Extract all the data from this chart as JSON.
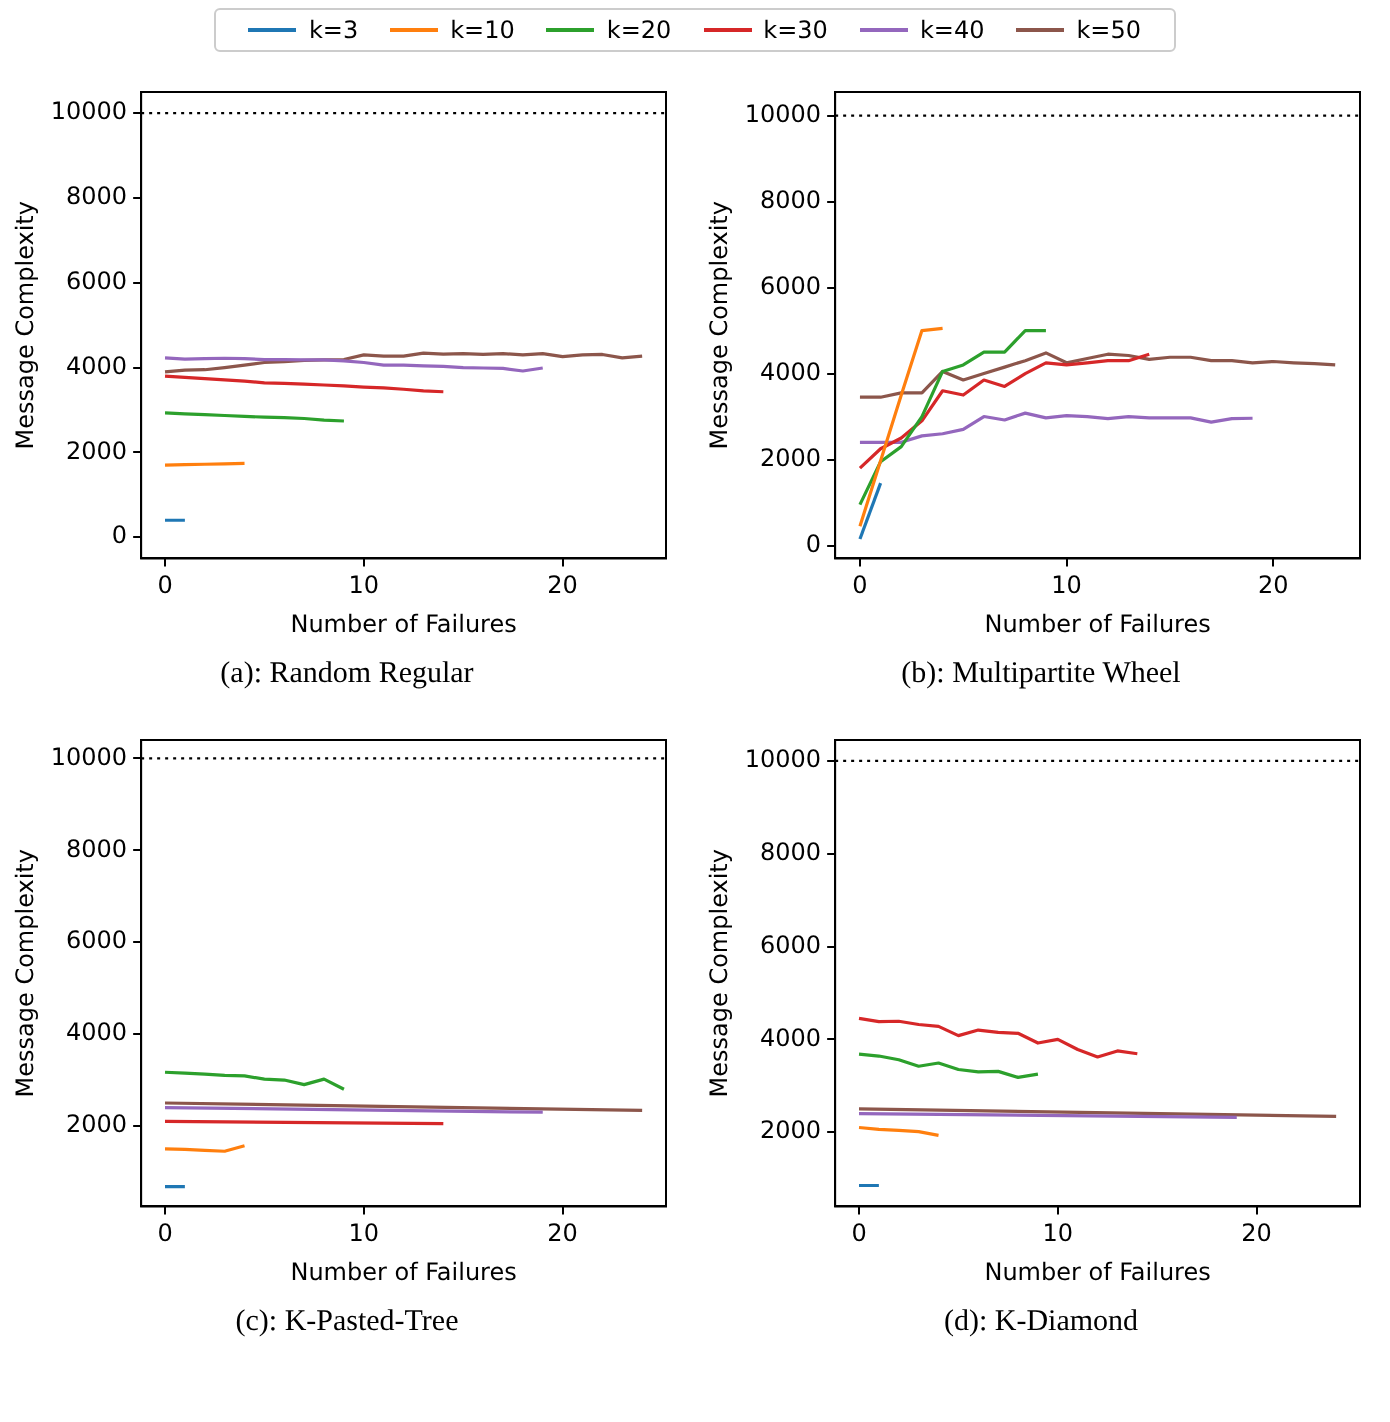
{
  "chart_data": [
    {
      "type": "line",
      "title": "(a): Random Regular",
      "xlabel": "Number of Failures",
      "ylabel": "Message Complexity",
      "legend": "top",
      "grid": false,
      "line_style": "solid",
      "marker": "none",
      "xlim": [
        -1.2,
        25.2
      ],
      "xticks": [
        0,
        10,
        20
      ],
      "ylim": [
        -500,
        10500
      ],
      "yticks": [
        0,
        2000,
        4000,
        6000,
        8000,
        10000
      ],
      "ref_lines": [
        {
          "axis": "y",
          "value": 10000,
          "color": "#000000",
          "line_style": "dotted"
        }
      ],
      "series": [
        {
          "name": "k=3",
          "color": "#1f77b4",
          "x": [
            0,
            1
          ],
          "values": [
            400,
            400
          ]
        },
        {
          "name": "k=10",
          "color": "#ff7f0e",
          "x": [
            0,
            1,
            2,
            3,
            4
          ],
          "values": [
            1700,
            1710,
            1720,
            1730,
            1740
          ]
        },
        {
          "name": "k=20",
          "color": "#2ca02c",
          "x": [
            0,
            1,
            2,
            3,
            4,
            5,
            6,
            7,
            8,
            9
          ],
          "values": [
            2930,
            2910,
            2890,
            2870,
            2850,
            2830,
            2820,
            2800,
            2760,
            2740
          ]
        },
        {
          "name": "k=30",
          "color": "#d62728",
          "x": [
            0,
            1,
            2,
            3,
            4,
            5,
            6,
            7,
            8,
            9,
            10,
            11,
            12,
            13,
            14
          ],
          "values": [
            3800,
            3770,
            3740,
            3710,
            3680,
            3640,
            3630,
            3610,
            3590,
            3570,
            3540,
            3520,
            3490,
            3450,
            3430
          ]
        },
        {
          "name": "k=40",
          "color": "#9467bd",
          "x": [
            0,
            1,
            2,
            3,
            4,
            5,
            6,
            7,
            8,
            9,
            10,
            11,
            12,
            13,
            14,
            15,
            16,
            17,
            18,
            19
          ],
          "values": [
            4230,
            4200,
            4210,
            4220,
            4210,
            4190,
            4190,
            4180,
            4180,
            4160,
            4120,
            4060,
            4060,
            4040,
            4030,
            4000,
            3990,
            3980,
            3920,
            3990
          ]
        },
        {
          "name": "k=50",
          "color": "#8c564b",
          "x": [
            0,
            1,
            2,
            3,
            4,
            5,
            6,
            7,
            8,
            9,
            10,
            11,
            12,
            13,
            14,
            15,
            16,
            17,
            18,
            19,
            20,
            21,
            22,
            23,
            24
          ],
          "values": [
            3900,
            3940,
            3950,
            4000,
            4060,
            4120,
            4140,
            4170,
            4180,
            4190,
            4300,
            4270,
            4270,
            4340,
            4320,
            4330,
            4310,
            4330,
            4300,
            4330,
            4260,
            4300,
            4310,
            4230,
            4270
          ]
        }
      ]
    },
    {
      "type": "line",
      "title": "(b): Multipartite Wheel",
      "xlabel": "Number of Failures",
      "ylabel": "Message Complexity",
      "grid": false,
      "line_style": "solid",
      "marker": "none",
      "xlim": [
        -1.2,
        24.2
      ],
      "xticks": [
        0,
        10,
        20
      ],
      "ylim": [
        -300,
        10550
      ],
      "yticks": [
        0,
        2000,
        4000,
        6000,
        8000,
        10000
      ],
      "ref_lines": [
        {
          "axis": "y",
          "value": 10000,
          "color": "#000000",
          "line_style": "dotted"
        }
      ],
      "series": [
        {
          "color": "#1f77b4",
          "x": [
            0,
            1
          ],
          "values": [
            150,
            1450
          ]
        },
        {
          "color": "#ff7f0e",
          "x": [
            0,
            1,
            2,
            3,
            4
          ],
          "values": [
            450,
            1970,
            3500,
            5000,
            5050
          ]
        },
        {
          "color": "#2ca02c",
          "x": [
            0,
            1,
            2,
            3,
            4,
            5,
            6,
            7,
            8,
            9
          ],
          "values": [
            950,
            1950,
            2300,
            3000,
            4050,
            4200,
            4500,
            4500,
            5000,
            5000
          ]
        },
        {
          "color": "#d62728",
          "x": [
            0,
            1,
            2,
            3,
            4,
            5,
            6,
            7,
            8,
            9,
            10,
            11,
            12,
            13,
            14
          ],
          "values": [
            1800,
            2250,
            2500,
            2900,
            3600,
            3500,
            3850,
            3700,
            4000,
            4250,
            4200,
            4250,
            4300,
            4300,
            4450
          ]
        },
        {
          "color": "#9467bd",
          "x": [
            0,
            1,
            2,
            3,
            4,
            5,
            6,
            7,
            8,
            9,
            10,
            11,
            12,
            13,
            14,
            15,
            16,
            17,
            18,
            19
          ],
          "values": [
            2400,
            2400,
            2400,
            2550,
            2600,
            2700,
            3000,
            2920,
            3080,
            2970,
            3020,
            3000,
            2950,
            3000,
            2970,
            2970,
            2970,
            2870,
            2950,
            2960
          ]
        },
        {
          "color": "#8c564b",
          "x": [
            0,
            1,
            2,
            3,
            4,
            5,
            6,
            7,
            8,
            9,
            10,
            11,
            12,
            13,
            14,
            15,
            16,
            17,
            18,
            19,
            20,
            21,
            22,
            23
          ],
          "values": [
            3450,
            3450,
            3550,
            3550,
            4050,
            3850,
            4000,
            4150,
            4300,
            4480,
            4250,
            4350,
            4450,
            4420,
            4330,
            4380,
            4380,
            4300,
            4300,
            4250,
            4280,
            4250,
            4230,
            4200
          ]
        }
      ]
    },
    {
      "type": "line",
      "title": "(c): K-Pasted-Tree",
      "xlabel": "Number of Failures",
      "ylabel": "Message Complexity",
      "grid": false,
      "line_style": "solid",
      "marker": "none",
      "xlim": [
        -1.2,
        25.2
      ],
      "xticks": [
        0,
        10,
        20
      ],
      "ylim": [
        250,
        10400
      ],
      "yticks": [
        2000,
        4000,
        6000,
        8000,
        10000
      ],
      "ref_lines": [
        {
          "axis": "y",
          "value": 10000,
          "color": "#000000",
          "line_style": "dotted"
        }
      ],
      "series": [
        {
          "color": "#1f77b4",
          "x": [
            0,
            1
          ],
          "values": [
            680,
            680
          ]
        },
        {
          "color": "#ff7f0e",
          "x": [
            0,
            1,
            2,
            3,
            4
          ],
          "values": [
            1500,
            1490,
            1470,
            1450,
            1570
          ]
        },
        {
          "color": "#2ca02c",
          "x": [
            0,
            1,
            2,
            3,
            4,
            5,
            6,
            7,
            8,
            9
          ],
          "values": [
            3170,
            3150,
            3130,
            3100,
            3090,
            3020,
            3000,
            2900,
            3020,
            2800
          ]
        },
        {
          "color": "#d62728",
          "x": [
            0,
            14
          ],
          "values": [
            2100,
            2050
          ]
        },
        {
          "color": "#9467bd",
          "x": [
            0,
            19
          ],
          "values": [
            2400,
            2300
          ]
        },
        {
          "color": "#8c564b",
          "x": [
            0,
            24
          ],
          "values": [
            2500,
            2340
          ]
        }
      ]
    },
    {
      "type": "line",
      "title": "(d): K-Diamond",
      "xlabel": "Number of Failures",
      "ylabel": "Message Complexity",
      "grid": false,
      "line_style": "solid",
      "marker": "none",
      "xlim": [
        -1.2,
        25.2
      ],
      "xticks": [
        0,
        10,
        20
      ],
      "ylim": [
        400,
        10450
      ],
      "yticks": [
        2000,
        4000,
        6000,
        8000,
        10000
      ],
      "ref_lines": [
        {
          "axis": "y",
          "value": 10000,
          "color": "#000000",
          "line_style": "dotted"
        }
      ],
      "series": [
        {
          "color": "#1f77b4",
          "x": [
            0,
            1
          ],
          "values": [
            850,
            850
          ]
        },
        {
          "color": "#ff7f0e",
          "x": [
            0,
            1,
            2,
            3,
            4
          ],
          "values": [
            2100,
            2060,
            2040,
            2010,
            1930
          ]
        },
        {
          "color": "#2ca02c",
          "x": [
            0,
            1,
            2,
            3,
            4,
            5,
            6,
            7,
            8,
            9
          ],
          "values": [
            3680,
            3640,
            3560,
            3420,
            3490,
            3350,
            3300,
            3310,
            3180,
            3250
          ]
        },
        {
          "color": "#d62728",
          "x": [
            0,
            1,
            2,
            3,
            4,
            5,
            6,
            7,
            8,
            9,
            10,
            11,
            12,
            13,
            14
          ],
          "values": [
            4450,
            4380,
            4390,
            4320,
            4280,
            4080,
            4200,
            4150,
            4130,
            3920,
            4000,
            3780,
            3620,
            3750,
            3690
          ]
        },
        {
          "color": "#9467bd",
          "x": [
            0,
            19
          ],
          "values": [
            2400,
            2320
          ]
        },
        {
          "color": "#8c564b",
          "x": [
            0,
            24
          ],
          "values": [
            2500,
            2340
          ]
        }
      ]
    }
  ]
}
